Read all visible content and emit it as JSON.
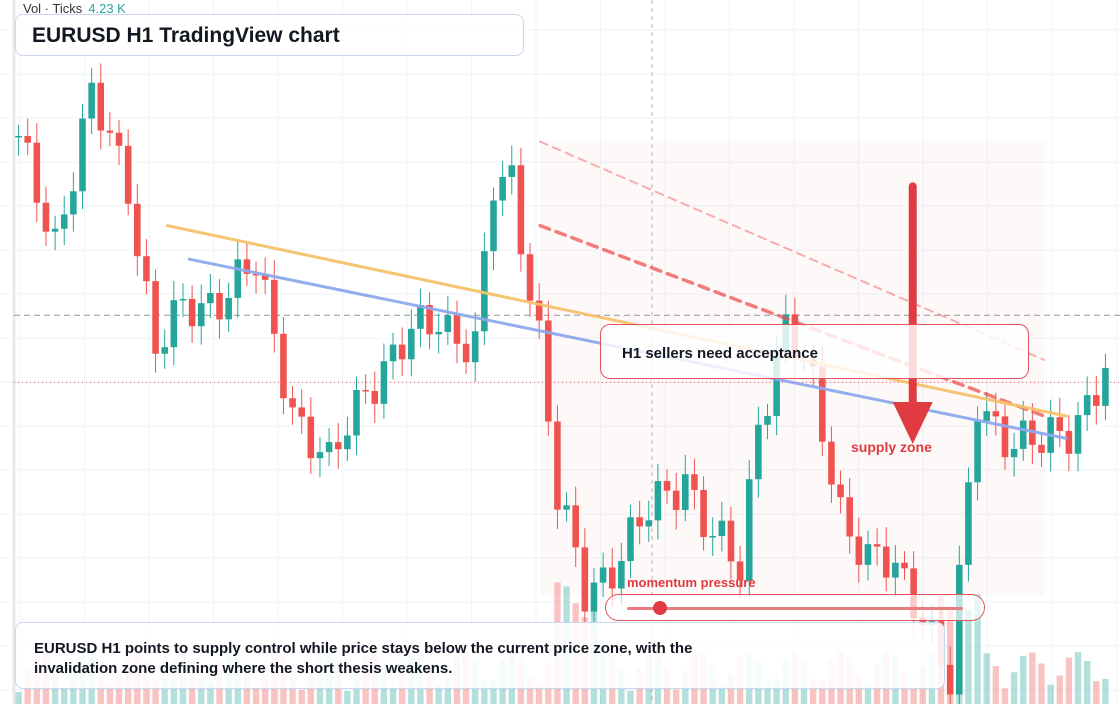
{
  "volume_legend": {
    "label": "Vol · Ticks",
    "value": "4.23 K"
  },
  "title": "EURUSD H1 TradingView chart",
  "callout_text": "H1 sellers need acceptance",
  "zone_label": "supply zone",
  "momentum": {
    "label": "momentum pressure",
    "level": 0.05
  },
  "summary_text": "EURUSD H1 points to supply control while price stays below the current price zone, with the invalidation zone defining where the short thesis weakens.",
  "colors": {
    "up": "#26a69a",
    "down": "#ef5350",
    "upper_trendline": "#f6c26b",
    "lower_trendline": "#8ea9ee",
    "bear_channel": "#ef5350",
    "arrow": "#e03b40"
  },
  "chart_data": {
    "type": "candlestick",
    "title": "EURUSD H1 TradingView chart",
    "candle_count": 120,
    "price_scale": "unlabeled",
    "anchors": [
      {
        "i": 0,
        "p": 0.88
      },
      {
        "i": 4,
        "p": 0.72
      },
      {
        "i": 8,
        "p": 0.96
      },
      {
        "i": 12,
        "p": 0.82
      },
      {
        "i": 15,
        "p": 0.52
      },
      {
        "i": 18,
        "p": 0.58
      },
      {
        "i": 22,
        "p": 0.62
      },
      {
        "i": 26,
        "p": 0.66
      },
      {
        "i": 30,
        "p": 0.42
      },
      {
        "i": 34,
        "p": 0.3
      },
      {
        "i": 38,
        "p": 0.46
      },
      {
        "i": 42,
        "p": 0.52
      },
      {
        "i": 46,
        "p": 0.58
      },
      {
        "i": 50,
        "p": 0.52
      },
      {
        "i": 52,
        "p": 0.8
      },
      {
        "i": 54,
        "p": 0.82
      },
      {
        "i": 57,
        "p": 0.55
      },
      {
        "i": 59,
        "p": 0.25
      },
      {
        "i": 62,
        "p": 0.08
      },
      {
        "i": 66,
        "p": 0.16
      },
      {
        "i": 70,
        "p": 0.24
      },
      {
        "i": 73,
        "p": 0.3
      },
      {
        "i": 76,
        "p": 0.18
      },
      {
        "i": 79,
        "p": 0.12
      },
      {
        "i": 81,
        "p": 0.4
      },
      {
        "i": 84,
        "p": 0.56
      },
      {
        "i": 87,
        "p": 0.44
      },
      {
        "i": 90,
        "p": 0.24
      },
      {
        "i": 93,
        "p": 0.14
      },
      {
        "i": 96,
        "p": 0.12
      },
      {
        "i": 99,
        "p": 0.06
      },
      {
        "i": 102,
        "p": -0.08
      },
      {
        "i": 105,
        "p": 0.42
      },
      {
        "i": 109,
        "p": 0.36
      },
      {
        "i": 112,
        "p": 0.34
      },
      {
        "i": 115,
        "p": 0.38
      },
      {
        "i": 119,
        "p": 0.48
      }
    ],
    "upper_trendline": {
      "from": [
        0.14,
        0.74
      ],
      "to": [
        0.96,
        0.4
      ]
    },
    "lower_trendline": {
      "from": [
        0.16,
        0.68
      ],
      "to": [
        0.96,
        0.36
      ]
    },
    "bear_channel": {
      "upper": {
        "from": [
          0.48,
          0.89
        ],
        "to": [
          0.94,
          0.5
        ]
      },
      "lower": {
        "from": [
          0.48,
          0.74
        ],
        "to": [
          0.94,
          0.4
        ]
      }
    },
    "price_zone_level": 0.58,
    "invalidation_level": 0.46,
    "arrow": {
      "x": 0.82,
      "from": 0.81,
      "to": 0.35
    }
  }
}
